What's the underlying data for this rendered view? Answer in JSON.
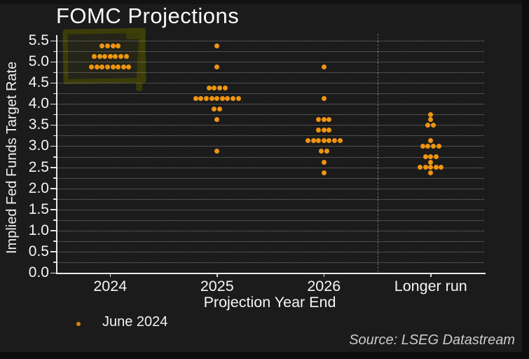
{
  "chart_data": {
    "type": "scatter",
    "subtype": "fomc-dot-plot",
    "title": "FOMC Projections",
    "xlabel": "Projection Year End",
    "ylabel": "Implied Fed Funds Target Rate",
    "ylim": [
      0.0,
      5.5
    ],
    "ytick_step": 0.5,
    "grid_step": 0.25,
    "yticks": [
      "0.0",
      "0.5",
      "1.0",
      "1.5",
      "2.0",
      "2.5",
      "3.0",
      "3.5",
      "4.0",
      "4.5",
      "5.0",
      "5.5"
    ],
    "categories": [
      "2024",
      "2025",
      "2026",
      "Longer run"
    ],
    "series": [
      {
        "name": "June 2024",
        "columns": [
          {
            "category": "2024",
            "dots": [
              {
                "rate": 5.375,
                "count": 4
              },
              {
                "rate": 5.125,
                "count": 7
              },
              {
                "rate": 4.875,
                "count": 8
              }
            ]
          },
          {
            "category": "2025",
            "dots": [
              {
                "rate": 5.375,
                "count": 1
              },
              {
                "rate": 4.875,
                "count": 1
              },
              {
                "rate": 4.375,
                "count": 4
              },
              {
                "rate": 4.125,
                "count": 9
              },
              {
                "rate": 3.875,
                "count": 2
              },
              {
                "rate": 3.625,
                "count": 1
              },
              {
                "rate": 2.875,
                "count": 1
              }
            ]
          },
          {
            "category": "2026",
            "dots": [
              {
                "rate": 4.875,
                "count": 1
              },
              {
                "rate": 4.125,
                "count": 1
              },
              {
                "rate": 3.625,
                "count": 3
              },
              {
                "rate": 3.375,
                "count": 3
              },
              {
                "rate": 3.125,
                "count": 7
              },
              {
                "rate": 2.875,
                "count": 2
              },
              {
                "rate": 2.625,
                "count": 1
              },
              {
                "rate": 2.375,
                "count": 1
              }
            ]
          },
          {
            "category": "Longer run",
            "dots": [
              {
                "rate": 3.75,
                "count": 1
              },
              {
                "rate": 3.625,
                "count": 1
              },
              {
                "rate": 3.5,
                "count": 2
              },
              {
                "rate": 3.125,
                "count": 1
              },
              {
                "rate": 3.0,
                "count": 4
              },
              {
                "rate": 2.75,
                "count": 3
              },
              {
                "rate": 2.625,
                "count": 1
              },
              {
                "rate": 2.5,
                "count": 5
              },
              {
                "rate": 2.375,
                "count": 1
              }
            ]
          }
        ]
      }
    ],
    "legend": {
      "label": "June 2024",
      "position": "bottom-left"
    },
    "source": "Source: LSEG Datastream",
    "annotations": [
      {
        "type": "hand-drawn-box",
        "target": "2024 dots",
        "color": "#3e3e08"
      }
    ],
    "colors": {
      "dot": "#ee9512",
      "legend_dot": "#d4820d",
      "background": "#1b1b1b",
      "grid": "#9a9a9a",
      "axis": "#e8e8e8",
      "text": "#f5f5f5",
      "source_text": "#cccccc",
      "highlight": "#3e3e08"
    },
    "grid": true
  }
}
